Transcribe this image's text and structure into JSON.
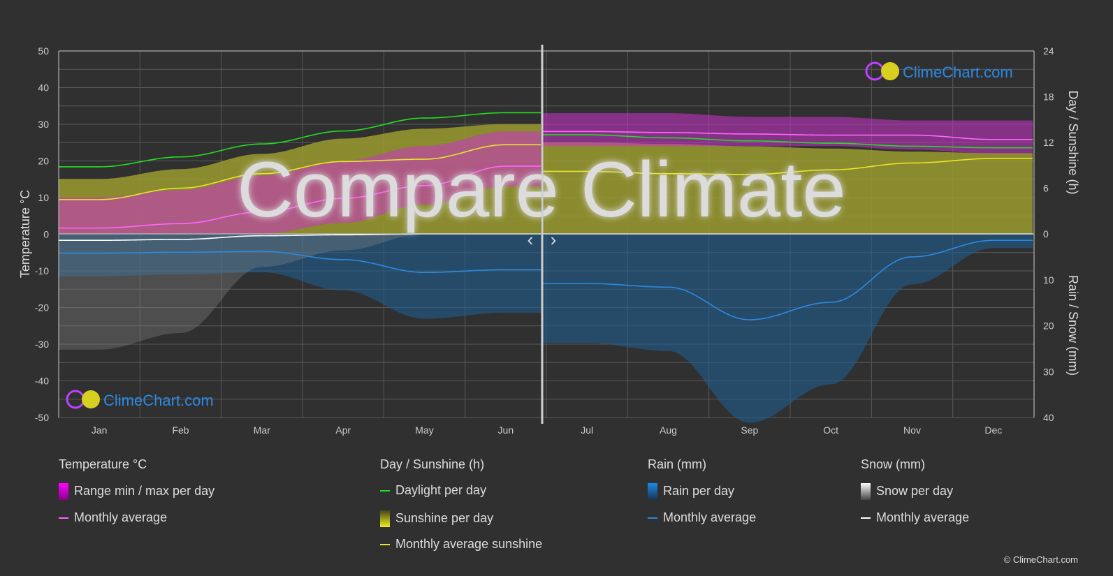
{
  "chart_data": {
    "type": "line",
    "title": "Compare Climate",
    "categories": [
      "Jan",
      "Feb",
      "Mar",
      "Apr",
      "May",
      "Jun",
      "Jul",
      "Aug",
      "Sep",
      "Oct",
      "Nov",
      "Dec"
    ],
    "left_axis": {
      "label": "Temperature °C",
      "ylim": [
        -50,
        50
      ],
      "ticks": [
        "50",
        "40",
        "30",
        "20",
        "10",
        "0",
        "-10",
        "-20",
        "-30",
        "-40",
        "-50"
      ]
    },
    "right_axis_top": {
      "label": "Day / Sunshine (h)",
      "ylim": [
        0,
        24
      ],
      "ticks": [
        "24",
        "18",
        "12",
        "6",
        "0"
      ]
    },
    "right_axis_bottom": {
      "label": "Rain / Snow (mm)",
      "ylim": [
        0,
        40
      ],
      "ticks": [
        "10",
        "20",
        "30",
        "40"
      ]
    },
    "grid": true,
    "comparison_split": "Jun|Jul",
    "series": [
      {
        "name": "Daylight per day",
        "axis": "hours",
        "color": "#22dd22",
        "values": [
          8.8,
          10.1,
          11.8,
          13.5,
          15.2,
          15.9,
          13.0,
          12.6,
          12.2,
          11.9,
          11.5,
          11.3
        ]
      },
      {
        "name": "Monthly average sunshine",
        "axis": "hours",
        "color": "#e6e62a",
        "values": [
          4.5,
          6.0,
          7.9,
          9.5,
          9.8,
          11.7,
          8.2,
          7.9,
          7.8,
          8.4,
          9.3,
          9.9
        ]
      },
      {
        "name": "Sunshine per day",
        "axis": "hours",
        "color": "#9a9a2e",
        "values": [
          7.2,
          8.5,
          10.5,
          12.5,
          13.8,
          14.4,
          12.0,
          11.8,
          11.5,
          11.2,
          10.8,
          10.6
        ]
      },
      {
        "name": "Temperature monthly average",
        "axis": "temp",
        "color": "#ff66ff",
        "values": [
          1.6,
          2.8,
          6.0,
          9.7,
          13.2,
          18.5,
          28.0,
          27.7,
          27.3,
          27.0,
          27.0,
          25.8
        ]
      },
      {
        "name": "Range min / max per day",
        "axis": "temp",
        "color": "#cc22cc",
        "min": [
          -8,
          -6,
          -2,
          3,
          8,
          13,
          24,
          24,
          24,
          24,
          23,
          22
        ],
        "max": [
          10,
          12,
          16,
          20,
          24,
          28,
          33,
          33,
          32,
          32,
          31,
          31
        ]
      },
      {
        "name": "Rain monthly average",
        "axis": "mm",
        "color": "#2a8ae0",
        "values": [
          4.2,
          4.0,
          3.8,
          5.6,
          8.4,
          7.8,
          10.8,
          11.6,
          18.7,
          14.9,
          5.0,
          1.4
        ]
      },
      {
        "name": "Snow monthly average",
        "axis": "mm",
        "color": "#ffffff",
        "values": [
          1.4,
          1.2,
          0.4,
          0.2,
          0,
          0,
          0,
          0,
          0,
          0,
          0,
          0
        ]
      }
    ]
  },
  "legend": {
    "temperature": {
      "title": "Temperature °C",
      "range": "Range min / max per day",
      "avg": "Monthly average"
    },
    "sunshine": {
      "title": "Day / Sunshine (h)",
      "daylight": "Daylight per day",
      "sunshine": "Sunshine per day",
      "avg": "Monthly average sunshine"
    },
    "rain": {
      "title": "Rain (mm)",
      "per_day": "Rain per day",
      "avg": "Monthly average"
    },
    "snow": {
      "title": "Snow (mm)",
      "per_day": "Snow per day",
      "avg": "Monthly average"
    }
  },
  "nav": {
    "prev": "‹",
    "next": "›"
  },
  "logo": "ClimeChart.com",
  "copyright": "© ClimeChart.com"
}
